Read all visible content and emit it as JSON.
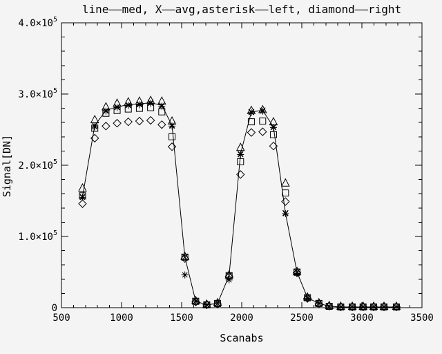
{
  "window": {
    "background_color": "#f4f4f4",
    "axis_color": "#000000",
    "data_color": "#000000"
  },
  "chart_data": {
    "type": "line",
    "title": "line——med, X——avg,asterisk——left, diamond——right",
    "xlabel": "Scanabs",
    "ylabel": "Signal[DN]",
    "xlim": [
      500,
      3500
    ],
    "ylim": [
      0,
      400000
    ],
    "grid": false,
    "legend_position": "in-title",
    "x_major_ticks": [
      500,
      1000,
      1500,
      2000,
      2500,
      3000,
      3500
    ],
    "x_minor_step": 100,
    "y_major_ticks": [
      {
        "value": 0,
        "mantissa": "0",
        "exponent": ""
      },
      {
        "value": 100000,
        "mantissa": "1.0×10",
        "exponent": "5"
      },
      {
        "value": 200000,
        "mantissa": "2.0×10",
        "exponent": "5"
      },
      {
        "value": 300000,
        "mantissa": "3.0×10",
        "exponent": "5"
      },
      {
        "value": 400000,
        "mantissa": "4.0×10",
        "exponent": "5"
      }
    ],
    "y_minor_step": 20000,
    "x": [
      675,
      777,
      870,
      963,
      1056,
      1149,
      1242,
      1335,
      1420,
      1527,
      1617,
      1709,
      1799,
      1895,
      1990,
      2080,
      2174,
      2264,
      2364,
      2460,
      2547,
      2642,
      2728,
      2824,
      2920,
      3010,
      3098,
      3184,
      3287
    ],
    "series": [
      {
        "name": "med",
        "legend": "line——med",
        "marker": "line",
        "values": [
          156000,
          256000,
          277000,
          282000,
          285000,
          286000,
          288000,
          284000,
          256000,
          71000,
          9000,
          4000,
          6000,
          45000,
          216000,
          275000,
          277000,
          254000,
          133000,
          50000,
          14000,
          6000,
          2000,
          1000,
          1000,
          1000,
          1000,
          1000,
          1000
        ]
      },
      {
        "name": "avg",
        "legend": "X——avg",
        "marker": "x",
        "values": [
          156000,
          256000,
          277000,
          282000,
          285000,
          286000,
          288000,
          284000,
          256000,
          71000,
          9000,
          4000,
          6000,
          45000,
          216000,
          275000,
          277000,
          254000,
          133000,
          50000,
          14000,
          6000,
          2000,
          1000,
          1000,
          1000,
          1000,
          1000,
          1000
        ]
      },
      {
        "name": "left",
        "legend": "asterisk——left",
        "marker": "asterisk",
        "values": [
          155000,
          254000,
          276000,
          281000,
          284000,
          285000,
          287000,
          283000,
          255000,
          46000,
          9000,
          4000,
          6000,
          39000,
          215000,
          274000,
          276000,
          253000,
          132000,
          48000,
          13000,
          6000,
          2000,
          1000,
          1000,
          1000,
          1000,
          1000,
          1000
        ]
      },
      {
        "name": "right",
        "legend": "diamond——right",
        "marker": "diamond",
        "values": [
          146000,
          238000,
          255000,
          259000,
          261000,
          262000,
          263000,
          257000,
          226000,
          69000,
          8000,
          4000,
          5000,
          44000,
          187000,
          246000,
          247000,
          227000,
          149000,
          49000,
          13000,
          5000,
          2000,
          1000,
          1000,
          1000,
          1000,
          1000,
          1000
        ]
      },
      {
        "name": "square",
        "legend": "",
        "marker": "square",
        "values": [
          157000,
          252000,
          273000,
          277000,
          279000,
          280000,
          281000,
          275000,
          240000,
          71000,
          9000,
          4000,
          6000,
          45000,
          205000,
          261000,
          262000,
          243000,
          161000,
          50000,
          14000,
          6000,
          2000,
          1000,
          1000,
          1000,
          1000,
          1000,
          1000
        ]
      },
      {
        "name": "triangle",
        "legend": "",
        "marker": "triangle",
        "values": [
          168000,
          264000,
          282000,
          287000,
          289000,
          290000,
          291000,
          290000,
          262000,
          72000,
          10000,
          5000,
          7000,
          46000,
          225000,
          277000,
          278000,
          261000,
          175000,
          51000,
          15000,
          7000,
          3000,
          2000,
          2000,
          2000,
          2000,
          2000,
          2000
        ]
      }
    ]
  }
}
